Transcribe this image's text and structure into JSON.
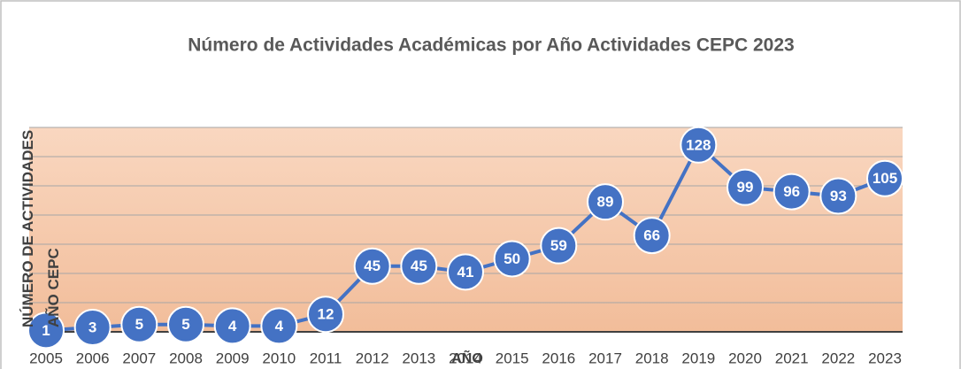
{
  "chart_data": {
    "type": "line",
    "title": "Número de Actividades Académicas por Año Actividades CEPC 2023",
    "x_label": "AÑO",
    "y_label": "NÚMERO DE ACTIVIDADES AÑO CEPC",
    "categories": [
      "2005",
      "2006",
      "2007",
      "2008",
      "2009",
      "2010",
      "2011",
      "2012",
      "2013",
      "2014",
      "2015",
      "2016",
      "2017",
      "2018",
      "2019",
      "2020",
      "2021",
      "2022",
      "2023"
    ],
    "series": [
      {
        "name": "Actividades",
        "color": "#4472c4",
        "values": [
          1,
          3,
          5,
          5,
          4,
          4,
          12,
          45,
          45,
          41,
          50,
          59,
          89,
          66,
          128,
          99,
          96,
          93,
          105
        ]
      }
    ],
    "ylim": [
      0,
      140
    ],
    "yticks": [
      0,
      20,
      40,
      60,
      80,
      100,
      120,
      140
    ],
    "grid": true
  }
}
